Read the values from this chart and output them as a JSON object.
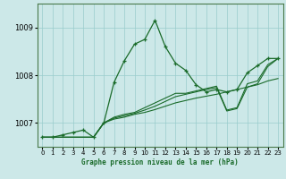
{
  "xlabel": "Graphe pression niveau de la mer (hPa)",
  "background_color": "#cce8e8",
  "grid_color": "#99cccc",
  "line_color": "#1a6b2a",
  "ylim": [
    1006.5,
    1009.5
  ],
  "xlim": [
    -0.5,
    23.5
  ],
  "yticks": [
    1007,
    1008,
    1009
  ],
  "xticks": [
    0,
    1,
    2,
    3,
    4,
    5,
    6,
    7,
    8,
    9,
    10,
    11,
    12,
    13,
    14,
    15,
    16,
    17,
    18,
    19,
    20,
    21,
    22,
    23
  ],
  "series": [
    {
      "x": [
        0,
        1,
        2,
        3,
        4,
        5,
        6,
        7,
        8,
        9,
        10,
        11,
        12,
        13,
        14,
        15,
        16,
        17,
        18,
        19,
        20,
        21,
        22,
        23
      ],
      "y": [
        1006.7,
        1006.7,
        1006.75,
        1006.8,
        1006.85,
        1006.7,
        1007.0,
        1007.85,
        1008.3,
        1008.65,
        1008.75,
        1009.15,
        1008.6,
        1008.25,
        1008.1,
        1007.8,
        1007.65,
        1007.7,
        1007.65,
        1007.7,
        1008.05,
        1008.2,
        1008.35,
        1008.35
      ],
      "marker": true,
      "linewidth": 0.9,
      "markersize": 3.5
    },
    {
      "x": [
        0,
        5,
        6,
        7,
        8,
        9,
        10,
        11,
        12,
        13,
        14,
        15,
        16,
        17,
        18,
        19,
        20,
        21,
        22,
        23
      ],
      "y": [
        1006.7,
        1006.7,
        1007.0,
        1007.08,
        1007.12,
        1007.18,
        1007.22,
        1007.28,
        1007.35,
        1007.42,
        1007.47,
        1007.52,
        1007.56,
        1007.6,
        1007.65,
        1007.7,
        1007.75,
        1007.8,
        1007.88,
        1007.93
      ],
      "marker": false,
      "linewidth": 0.8,
      "markersize": 0
    },
    {
      "x": [
        0,
        5,
        6,
        7,
        8,
        9,
        10,
        11,
        12,
        13,
        14,
        15,
        16,
        17,
        18,
        19,
        20,
        21,
        22,
        23
      ],
      "y": [
        1006.7,
        1006.7,
        1007.0,
        1007.1,
        1007.15,
        1007.2,
        1007.27,
        1007.35,
        1007.45,
        1007.55,
        1007.6,
        1007.65,
        1007.7,
        1007.74,
        1007.25,
        1007.3,
        1007.75,
        1007.82,
        1008.18,
        1008.35
      ],
      "marker": false,
      "linewidth": 0.8,
      "markersize": 0
    },
    {
      "x": [
        0,
        5,
        6,
        7,
        8,
        9,
        10,
        11,
        12,
        13,
        14,
        15,
        16,
        17,
        18,
        19,
        20,
        21,
        22,
        23
      ],
      "y": [
        1006.7,
        1006.7,
        1007.0,
        1007.12,
        1007.18,
        1007.22,
        1007.32,
        1007.42,
        1007.52,
        1007.62,
        1007.62,
        1007.67,
        1007.72,
        1007.77,
        1007.27,
        1007.32,
        1007.82,
        1007.88,
        1008.22,
        1008.35
      ],
      "marker": false,
      "linewidth": 0.8,
      "markersize": 0
    }
  ]
}
